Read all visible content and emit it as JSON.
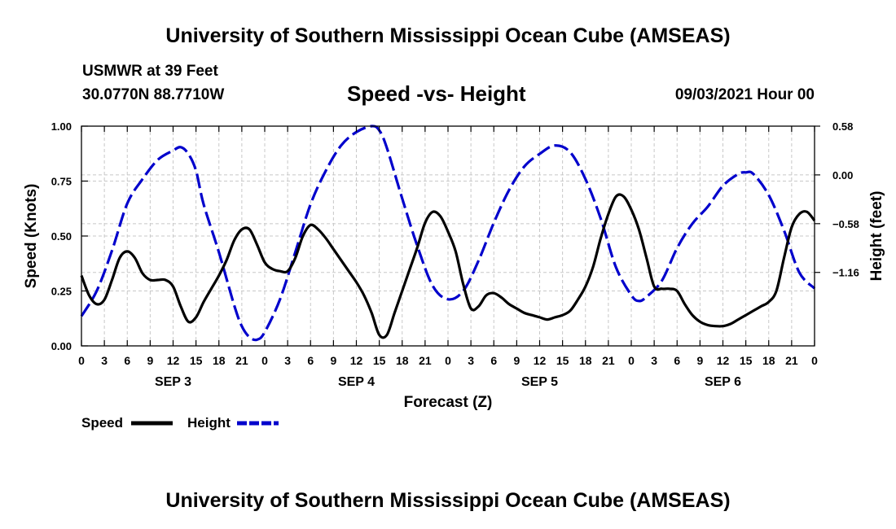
{
  "header": {
    "title_top": "University of Southern Mississippi Ocean Cube (AMSEAS)",
    "station": "USMWR at 39 Feet",
    "coords": "30.0770N  88.7710W",
    "chart_title": "Speed -vs- Height",
    "datetime": "09/03/2021 Hour 00"
  },
  "footer": {
    "title_bottom": "University of Southern Mississippi Ocean Cube (AMSEAS)"
  },
  "legend": {
    "speed_label": "Speed",
    "height_label": "Height"
  },
  "chart_data": {
    "type": "line",
    "title": "Speed -vs- Height",
    "xlabel": "Forecast (Z)",
    "ylabel_left": "Speed (Knots)",
    "ylabel_right": "Height (feet)",
    "x_unit": "hours from 09/03/2021 00Z",
    "xlim": [
      0,
      96
    ],
    "ylim_left": [
      0,
      1.0
    ],
    "ylim_right": [
      -2.034,
      0.58
    ],
    "grid": true,
    "left_ticks": [
      {
        "value": 0.0,
        "label": "0.00"
      },
      {
        "value": 0.25,
        "label": "0.25"
      },
      {
        "value": 0.5,
        "label": "0.50"
      },
      {
        "value": 0.75,
        "label": "0.75"
      },
      {
        "value": 1.0,
        "label": "1.00"
      }
    ],
    "right_ticks": [
      {
        "value": 0.58,
        "label": "0.58"
      },
      {
        "value": 0.0,
        "label": "0.00"
      },
      {
        "value": -0.58,
        "label": "−0.58"
      },
      {
        "value": -1.16,
        "label": "−1.16"
      }
    ],
    "x_ticks": [
      {
        "x": 0,
        "label": "0"
      },
      {
        "x": 3,
        "label": "3"
      },
      {
        "x": 6,
        "label": "6"
      },
      {
        "x": 9,
        "label": "9"
      },
      {
        "x": 12,
        "label": "12"
      },
      {
        "x": 15,
        "label": "15"
      },
      {
        "x": 18,
        "label": "18"
      },
      {
        "x": 21,
        "label": "21"
      },
      {
        "x": 24,
        "label": "0"
      },
      {
        "x": 27,
        "label": "3"
      },
      {
        "x": 30,
        "label": "6"
      },
      {
        "x": 33,
        "label": "9"
      },
      {
        "x": 36,
        "label": "12"
      },
      {
        "x": 39,
        "label": "15"
      },
      {
        "x": 42,
        "label": "18"
      },
      {
        "x": 45,
        "label": "21"
      },
      {
        "x": 48,
        "label": "0"
      },
      {
        "x": 51,
        "label": "3"
      },
      {
        "x": 54,
        "label": "6"
      },
      {
        "x": 57,
        "label": "9"
      },
      {
        "x": 60,
        "label": "12"
      },
      {
        "x": 63,
        "label": "15"
      },
      {
        "x": 66,
        "label": "18"
      },
      {
        "x": 69,
        "label": "21"
      },
      {
        "x": 72,
        "label": "0"
      },
      {
        "x": 75,
        "label": "3"
      },
      {
        "x": 78,
        "label": "6"
      },
      {
        "x": 81,
        "label": "9"
      },
      {
        "x": 84,
        "label": "12"
      },
      {
        "x": 87,
        "label": "15"
      },
      {
        "x": 90,
        "label": "18"
      },
      {
        "x": 93,
        "label": "21"
      },
      {
        "x": 96,
        "label": "0"
      }
    ],
    "day_labels": [
      {
        "x": 12,
        "label": "SEP 3"
      },
      {
        "x": 36,
        "label": "SEP 4"
      },
      {
        "x": 60,
        "label": "SEP 5"
      },
      {
        "x": 84,
        "label": "SEP 6"
      }
    ],
    "series": [
      {
        "name": "Speed",
        "axis": "left",
        "color": "#000000",
        "dash": "solid",
        "points": [
          [
            0,
            0.32
          ],
          [
            1,
            0.23
          ],
          [
            2,
            0.19
          ],
          [
            3,
            0.21
          ],
          [
            4,
            0.3
          ],
          [
            5,
            0.4
          ],
          [
            6,
            0.43
          ],
          [
            7,
            0.4
          ],
          [
            8,
            0.33
          ],
          [
            9,
            0.3
          ],
          [
            10,
            0.3
          ],
          [
            11,
            0.3
          ],
          [
            12,
            0.27
          ],
          [
            13,
            0.18
          ],
          [
            14,
            0.11
          ],
          [
            15,
            0.13
          ],
          [
            16,
            0.2
          ],
          [
            17,
            0.26
          ],
          [
            18,
            0.32
          ],
          [
            19,
            0.39
          ],
          [
            20,
            0.48
          ],
          [
            21,
            0.53
          ],
          [
            22,
            0.53
          ],
          [
            23,
            0.46
          ],
          [
            24,
            0.38
          ],
          [
            25,
            0.35
          ],
          [
            26,
            0.34
          ],
          [
            27,
            0.34
          ],
          [
            28,
            0.4
          ],
          [
            29,
            0.5
          ],
          [
            30,
            0.55
          ],
          [
            31,
            0.53
          ],
          [
            32,
            0.49
          ],
          [
            33,
            0.44
          ],
          [
            34,
            0.39
          ],
          [
            35,
            0.34
          ],
          [
            36,
            0.29
          ],
          [
            37,
            0.23
          ],
          [
            38,
            0.15
          ],
          [
            39,
            0.05
          ],
          [
            40,
            0.05
          ],
          [
            41,
            0.15
          ],
          [
            42,
            0.25
          ],
          [
            43,
            0.35
          ],
          [
            44,
            0.45
          ],
          [
            45,
            0.56
          ],
          [
            46,
            0.61
          ],
          [
            47,
            0.59
          ],
          [
            48,
            0.52
          ],
          [
            49,
            0.43
          ],
          [
            50,
            0.28
          ],
          [
            51,
            0.17
          ],
          [
            52,
            0.18
          ],
          [
            53,
            0.23
          ],
          [
            54,
            0.24
          ],
          [
            55,
            0.22
          ],
          [
            56,
            0.19
          ],
          [
            57,
            0.17
          ],
          [
            58,
            0.15
          ],
          [
            59,
            0.14
          ],
          [
            60,
            0.13
          ],
          [
            61,
            0.12
          ],
          [
            62,
            0.13
          ],
          [
            63,
            0.14
          ],
          [
            64,
            0.16
          ],
          [
            65,
            0.21
          ],
          [
            66,
            0.27
          ],
          [
            67,
            0.36
          ],
          [
            68,
            0.49
          ],
          [
            69,
            0.6
          ],
          [
            70,
            0.68
          ],
          [
            71,
            0.68
          ],
          [
            72,
            0.62
          ],
          [
            73,
            0.53
          ],
          [
            74,
            0.4
          ],
          [
            75,
            0.27
          ],
          [
            76,
            0.26
          ],
          [
            77,
            0.26
          ],
          [
            78,
            0.25
          ],
          [
            79,
            0.19
          ],
          [
            80,
            0.14
          ],
          [
            81,
            0.11
          ],
          [
            82,
            0.095
          ],
          [
            83,
            0.09
          ],
          [
            84,
            0.09
          ],
          [
            85,
            0.1
          ],
          [
            86,
            0.12
          ],
          [
            87,
            0.14
          ],
          [
            88,
            0.16
          ],
          [
            89,
            0.18
          ],
          [
            90,
            0.2
          ],
          [
            91,
            0.25
          ],
          [
            92,
            0.4
          ],
          [
            93,
            0.54
          ],
          [
            94,
            0.6
          ],
          [
            95,
            0.61
          ],
          [
            96,
            0.57
          ]
        ]
      },
      {
        "name": "Height",
        "axis": "right",
        "color": "#0000cc",
        "dash": "dashed",
        "points": [
          [
            0,
            -1.68
          ],
          [
            2,
            -1.38
          ],
          [
            4,
            -0.9
          ],
          [
            6,
            -0.34
          ],
          [
            8,
            -0.05
          ],
          [
            10,
            0.18
          ],
          [
            12,
            0.29
          ],
          [
            13,
            0.33
          ],
          [
            14,
            0.25
          ],
          [
            15,
            0.05
          ],
          [
            16,
            -0.35
          ],
          [
            18,
            -0.92
          ],
          [
            20,
            -1.55
          ],
          [
            21,
            -1.8
          ],
          [
            22,
            -1.93
          ],
          [
            23,
            -1.96
          ],
          [
            24,
            -1.87
          ],
          [
            26,
            -1.48
          ],
          [
            28,
            -0.92
          ],
          [
            30,
            -0.35
          ],
          [
            32,
            0.05
          ],
          [
            34,
            0.35
          ],
          [
            36,
            0.51
          ],
          [
            38,
            0.58
          ],
          [
            39,
            0.53
          ],
          [
            40,
            0.32
          ],
          [
            42,
            -0.28
          ],
          [
            44,
            -0.85
          ],
          [
            46,
            -1.32
          ],
          [
            48,
            -1.48
          ],
          [
            50,
            -1.38
          ],
          [
            52,
            -1.02
          ],
          [
            54,
            -0.57
          ],
          [
            56,
            -0.18
          ],
          [
            58,
            0.1
          ],
          [
            60,
            0.25
          ],
          [
            62,
            0.35
          ],
          [
            64,
            0.27
          ],
          [
            66,
            -0.05
          ],
          [
            68,
            -0.52
          ],
          [
            70,
            -1.1
          ],
          [
            72,
            -1.43
          ],
          [
            73,
            -1.5
          ],
          [
            74,
            -1.45
          ],
          [
            76,
            -1.26
          ],
          [
            78,
            -0.87
          ],
          [
            80,
            -0.58
          ],
          [
            82,
            -0.38
          ],
          [
            84,
            -0.13
          ],
          [
            86,
            0.01
          ],
          [
            87,
            0.03
          ],
          [
            88,
            0.01
          ],
          [
            90,
            -0.24
          ],
          [
            92,
            -0.66
          ],
          [
            94,
            -1.16
          ],
          [
            96,
            -1.35
          ]
        ]
      }
    ]
  }
}
